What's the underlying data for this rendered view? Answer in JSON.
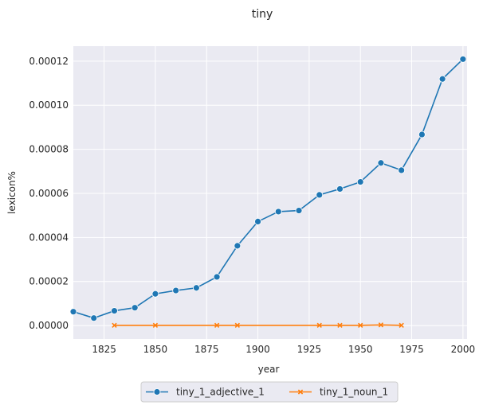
{
  "chart_data": {
    "type": "line",
    "title": "tiny",
    "xlabel": "year",
    "ylabel": "lexicon%",
    "xlim": [
      1810,
      2002
    ],
    "ylim": [
      -6.1e-06,
      0.0001268
    ],
    "xticks": [
      1825,
      1850,
      1875,
      1900,
      1925,
      1950,
      1975,
      2000
    ],
    "xtick_labels": [
      "1825",
      "1850",
      "1875",
      "1900",
      "1925",
      "1950",
      "1975",
      "2000"
    ],
    "yticks": [
      0,
      2e-05,
      4e-05,
      6e-05,
      8e-05,
      0.0001,
      0.00012
    ],
    "ytick_labels": [
      "0.00000",
      "0.00002",
      "0.00004",
      "0.00006",
      "0.00008",
      "0.00010",
      "0.00012"
    ],
    "grid": true,
    "legend_position": "bottom-center",
    "series": [
      {
        "name": "tiny_1_adjective_1",
        "color": "#1f77b4",
        "marker": "circle",
        "x": [
          1810,
          1820,
          1830,
          1840,
          1850,
          1860,
          1870,
          1880,
          1890,
          1900,
          1910,
          1920,
          1930,
          1940,
          1950,
          1960,
          1970,
          1980,
          1990,
          2000
        ],
        "y": [
          6.3e-06,
          3.4e-06,
          6.7e-06,
          8.1e-06,
          1.44e-05,
          1.59e-05,
          1.71e-05,
          2.21e-05,
          3.62e-05,
          4.72e-05,
          5.17e-05,
          5.22e-05,
          5.93e-05,
          6.2e-05,
          6.52e-05,
          7.38e-05,
          7.05e-05,
          8.67e-05,
          0.0001119,
          0.0001209
        ]
      },
      {
        "name": "tiny_1_noun_1",
        "color": "#ff7f0e",
        "marker": "x",
        "x": [
          1830,
          1850,
          1880,
          1890,
          1930,
          1940,
          1950,
          1960,
          1970
        ],
        "y": [
          1e-07,
          1e-07,
          1e-07,
          1e-07,
          1e-07,
          1e-07,
          1e-07,
          3e-07,
          1e-07
        ]
      }
    ]
  }
}
